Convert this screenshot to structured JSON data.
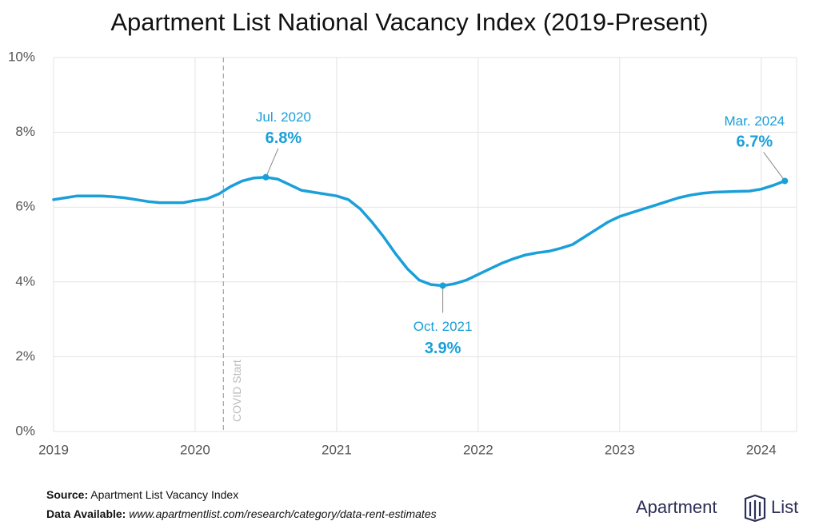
{
  "chart_data": {
    "type": "line",
    "title": "Apartment List National Vacancy Index (2019-Present)",
    "x": [
      2019,
      2019.083,
      2019.167,
      2019.25,
      2019.333,
      2019.417,
      2019.5,
      2019.583,
      2019.667,
      2019.75,
      2019.833,
      2019.917,
      2020,
      2020.083,
      2020.167,
      2020.25,
      2020.333,
      2020.417,
      2020.5,
      2020.583,
      2020.667,
      2020.75,
      2020.833,
      2020.917,
      2021,
      2021.083,
      2021.167,
      2021.25,
      2021.333,
      2021.417,
      2021.5,
      2021.583,
      2021.667,
      2021.75,
      2021.833,
      2021.917,
      2022,
      2022.083,
      2022.167,
      2022.25,
      2022.333,
      2022.417,
      2022.5,
      2022.583,
      2022.667,
      2022.75,
      2022.833,
      2022.917,
      2023,
      2023.083,
      2023.167,
      2023.25,
      2023.333,
      2023.417,
      2023.5,
      2023.583,
      2023.667,
      2023.75,
      2023.833,
      2023.917,
      2024,
      2024.083,
      2024.167
    ],
    "values": [
      6.2,
      6.25,
      6.3,
      6.3,
      6.3,
      6.28,
      6.25,
      6.2,
      6.15,
      6.12,
      6.12,
      6.12,
      6.18,
      6.22,
      6.35,
      6.55,
      6.7,
      6.78,
      6.8,
      6.75,
      6.6,
      6.45,
      6.4,
      6.35,
      6.3,
      6.2,
      5.95,
      5.6,
      5.2,
      4.75,
      4.35,
      4.05,
      3.93,
      3.9,
      3.95,
      4.05,
      4.2,
      4.35,
      4.5,
      4.62,
      4.72,
      4.78,
      4.82,
      4.9,
      5.0,
      5.2,
      5.4,
      5.6,
      5.75,
      5.85,
      5.95,
      6.05,
      6.15,
      6.25,
      6.32,
      6.37,
      6.4,
      6.41,
      6.42,
      6.43,
      6.48,
      6.58,
      6.7
    ],
    "color": "#1a9fd9",
    "xlim": [
      2019,
      2024.25
    ],
    "xticks": [
      2019,
      2020,
      2021,
      2022,
      2023,
      2024
    ],
    "ylim": [
      0,
      10
    ],
    "yticks": [
      {
        "value": 0,
        "label": "0%"
      },
      {
        "value": 2,
        "label": "2%"
      },
      {
        "value": 4,
        "label": "4%"
      },
      {
        "value": 6,
        "label": "6%"
      },
      {
        "value": 8,
        "label": "8%"
      },
      {
        "value": 10,
        "label": "10%"
      }
    ],
    "grid": true,
    "event": {
      "x": 2020.2,
      "label": "COVID Start"
    },
    "annotations": [
      {
        "x": 2020.5,
        "y": 6.8,
        "date": "Jul. 2020",
        "label": "6.8%"
      },
      {
        "x": 2021.75,
        "y": 3.9,
        "date": "Oct. 2021",
        "label": "3.9%"
      },
      {
        "x": 2024.167,
        "y": 6.7,
        "date": "Mar. 2024",
        "label": "6.7%"
      }
    ]
  },
  "footer": {
    "source_label": "Source:",
    "source": "Apartment List Vacancy Index",
    "data_label": "Data Available:",
    "data_url": "www.apartmentlist.com/research/category/data-rent-estimates"
  },
  "logo": {
    "left": "Apartment",
    "right": "List"
  }
}
